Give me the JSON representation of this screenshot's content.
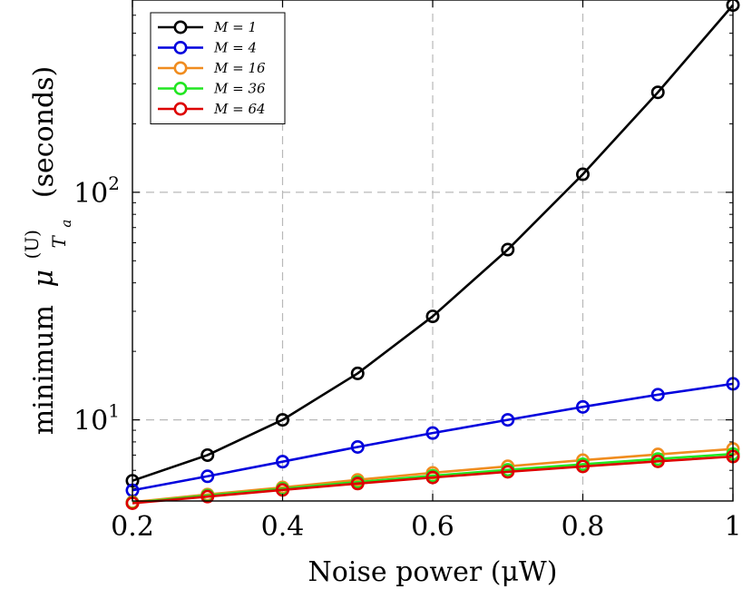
{
  "chart_data": {
    "type": "line",
    "title": "",
    "xlabel": "Noise power (μW)",
    "ylabel": "minimum μ_{T_a}^{(U)} (seconds)",
    "ylabel_parts": {
      "prefix": "minimum",
      "symbol": "μ",
      "superscript": "(U)",
      "subscript": "T",
      "subsubscript": "a",
      "suffix": "(seconds)"
    },
    "y_scale": "log",
    "xlim": [
      0.2,
      1.0
    ],
    "ylim": [
      4.4,
      700
    ],
    "x_ticks": [
      0.2,
      0.4,
      0.6,
      0.8,
      1.0
    ],
    "x_tick_labels": [
      "0.2",
      "0.4",
      "0.6",
      "0.8",
      "1"
    ],
    "y_ticks": [
      10,
      100
    ],
    "y_tick_labels": [
      {
        "base": "10",
        "exp": "1"
      },
      {
        "base": "10",
        "exp": "2"
      }
    ],
    "grid": true,
    "legend_position": "top-left",
    "x": [
      0.2,
      0.3,
      0.4,
      0.5,
      0.6,
      0.7,
      0.8,
      0.9,
      1.0
    ],
    "series": [
      {
        "name": "M = 1",
        "color": "#000000",
        "values": [
          5.4,
          7.0,
          10.0,
          16.0,
          28.5,
          56.0,
          120.0,
          275.0,
          665.0
        ]
      },
      {
        "name": "M = 4",
        "color": "#0000dd",
        "values": [
          4.9,
          5.65,
          6.55,
          7.6,
          8.75,
          10.0,
          11.4,
          12.9,
          14.4
        ]
      },
      {
        "name": "M = 16",
        "color": "#f08c1e",
        "values": [
          4.35,
          4.7,
          5.05,
          5.45,
          5.85,
          6.25,
          6.65,
          7.05,
          7.45
        ]
      },
      {
        "name": "M = 36",
        "color": "#22e622",
        "values": [
          4.32,
          4.65,
          4.98,
          5.33,
          5.68,
          6.03,
          6.38,
          6.73,
          7.08
        ]
      },
      {
        "name": "M = 64",
        "color": "#dd0000",
        "values": [
          4.3,
          4.6,
          4.92,
          5.25,
          5.58,
          5.91,
          6.24,
          6.57,
          6.9
        ]
      }
    ]
  }
}
